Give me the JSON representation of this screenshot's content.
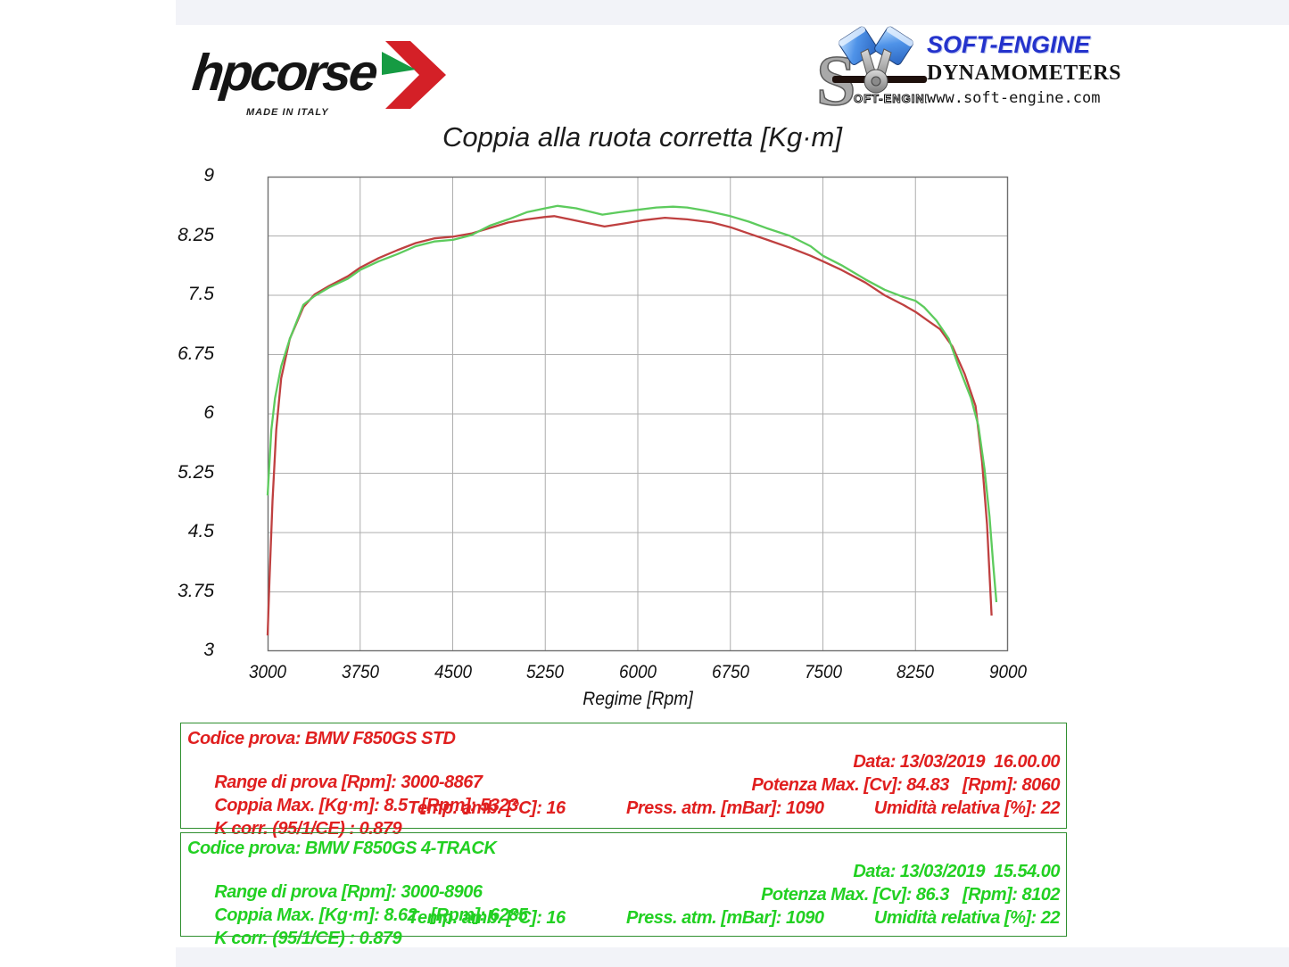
{
  "header": {
    "hpcorse": {
      "brand": "hpcorse",
      "tagline": "MADE IN ITALY"
    },
    "softengine": {
      "brand": "SOFT-ENGINE",
      "subtitle": "DYNAMOMETERS",
      "url": "www.soft-engine.com",
      "emblem_text": "OFT-ENGINE",
      "emblem_s": "S"
    }
  },
  "chart_data": {
    "type": "line",
    "title": "Coppia alla ruota corretta [Kg·m]",
    "xlabel": "Regime [Rpm]",
    "ylabel": "",
    "xlim": [
      3000,
      9000
    ],
    "ylim": [
      3,
      9
    ],
    "x_ticks": [
      3000,
      3750,
      4500,
      5250,
      6000,
      6750,
      7500,
      8250,
      9000
    ],
    "y_ticks": [
      3,
      3.75,
      4.5,
      5.25,
      6,
      6.75,
      7.5,
      8.25,
      9
    ],
    "grid": true,
    "grid_color": "#aeaeae",
    "border_color": "#6f6f6f",
    "series": [
      {
        "name": "BMW F850GS STD",
        "color": "#bf4040",
        "points": [
          [
            3000,
            3.2
          ],
          [
            3015,
            3.9
          ],
          [
            3040,
            4.9
          ],
          [
            3070,
            5.8
          ],
          [
            3110,
            6.45
          ],
          [
            3180,
            6.95
          ],
          [
            3290,
            7.35
          ],
          [
            3380,
            7.51
          ],
          [
            3500,
            7.62
          ],
          [
            3650,
            7.74
          ],
          [
            3750,
            7.85
          ],
          [
            3900,
            7.97
          ],
          [
            4050,
            8.07
          ],
          [
            4200,
            8.16
          ],
          [
            4350,
            8.22
          ],
          [
            4500,
            8.24
          ],
          [
            4650,
            8.28
          ],
          [
            4800,
            8.35
          ],
          [
            4950,
            8.42
          ],
          [
            5100,
            8.46
          ],
          [
            5250,
            8.49
          ],
          [
            5323,
            8.5
          ],
          [
            5450,
            8.46
          ],
          [
            5600,
            8.41
          ],
          [
            5730,
            8.37
          ],
          [
            5900,
            8.41
          ],
          [
            6050,
            8.45
          ],
          [
            6220,
            8.48
          ],
          [
            6400,
            8.46
          ],
          [
            6600,
            8.42
          ],
          [
            6750,
            8.36
          ],
          [
            6900,
            8.28
          ],
          [
            7050,
            8.2
          ],
          [
            7235,
            8.1
          ],
          [
            7400,
            8.0
          ],
          [
            7500,
            7.93
          ],
          [
            7650,
            7.82
          ],
          [
            7845,
            7.66
          ],
          [
            8000,
            7.5
          ],
          [
            8150,
            7.38
          ],
          [
            8250,
            7.29
          ],
          [
            8350,
            7.18
          ],
          [
            8450,
            7.07
          ],
          [
            8550,
            6.85
          ],
          [
            8650,
            6.5
          ],
          [
            8737,
            6.1
          ],
          [
            8790,
            5.4
          ],
          [
            8830,
            4.6
          ],
          [
            8867,
            3.45
          ]
        ]
      },
      {
        "name": "BMW F850GS 4-TRACK",
        "color": "#5dcb5d",
        "points": [
          [
            3000,
            4.97
          ],
          [
            3030,
            5.8
          ],
          [
            3060,
            6.2
          ],
          [
            3110,
            6.6
          ],
          [
            3180,
            6.95
          ],
          [
            3290,
            7.38
          ],
          [
            3380,
            7.49
          ],
          [
            3500,
            7.6
          ],
          [
            3650,
            7.71
          ],
          [
            3750,
            7.82
          ],
          [
            3900,
            7.93
          ],
          [
            4050,
            8.02
          ],
          [
            4200,
            8.12
          ],
          [
            4350,
            8.18
          ],
          [
            4500,
            8.2
          ],
          [
            4650,
            8.26
          ],
          [
            4800,
            8.38
          ],
          [
            4950,
            8.46
          ],
          [
            5100,
            8.55
          ],
          [
            5250,
            8.6
          ],
          [
            5350,
            8.63
          ],
          [
            5500,
            8.6
          ],
          [
            5713,
            8.52
          ],
          [
            5850,
            8.55
          ],
          [
            6000,
            8.58
          ],
          [
            6150,
            8.61
          ],
          [
            6285,
            8.62
          ],
          [
            6400,
            8.61
          ],
          [
            6550,
            8.57
          ],
          [
            6750,
            8.5
          ],
          [
            6900,
            8.43
          ],
          [
            7040,
            8.35
          ],
          [
            7235,
            8.25
          ],
          [
            7400,
            8.12
          ],
          [
            7500,
            8.0
          ],
          [
            7650,
            7.88
          ],
          [
            7845,
            7.7
          ],
          [
            8000,
            7.57
          ],
          [
            8150,
            7.48
          ],
          [
            8250,
            7.43
          ],
          [
            8320,
            7.35
          ],
          [
            8420,
            7.18
          ],
          [
            8520,
            6.95
          ],
          [
            8600,
            6.6
          ],
          [
            8700,
            6.2
          ],
          [
            8760,
            5.85
          ],
          [
            8810,
            5.3
          ],
          [
            8850,
            4.7
          ],
          [
            8880,
            4.1
          ],
          [
            8906,
            3.62
          ]
        ]
      }
    ]
  },
  "info_boxes": [
    {
      "line1": "Codice prova: BMW F850GS STD",
      "line2_left": "Range di prova [Rpm]: 3000-8867",
      "line2_right": "Data: 13/03/2019  16.00.00",
      "line3_left": "Coppia Max. [Kg·m]: 8.5   [Rpm]: 5323",
      "line3_right": "Potenza Max. [Cv]: 84.83   [Rpm]: 8060",
      "line4_c1": "K corr. (95/1/CE) : 0.879",
      "line4_c2": "Temp. amb. [°C]: 16",
      "line4_c3": "Press. atm. [mBar]: 1090",
      "line4_c4": "Umidità relativa [%]: 22"
    },
    {
      "line1": "Codice prova: BMW F850GS 4-TRACK",
      "line2_left": "Range di prova [Rpm]: 3000-8906",
      "line2_right": "Data: 13/03/2019  15.54.00",
      "line3_left": "Coppia Max. [Kg·m]: 8.62   [Rpm]: 6285",
      "line3_right": "Potenza Max. [Cv]: 86.3   [Rpm]: 8102",
      "line4_c1": "K corr. (95/1/CE) : 0.879",
      "line4_c2": "Temp. amb. [°C]: 16",
      "line4_c3": "Press. atm. [mBar]: 1090",
      "line4_c4": "Umidità relativa [%]: 22"
    }
  ]
}
